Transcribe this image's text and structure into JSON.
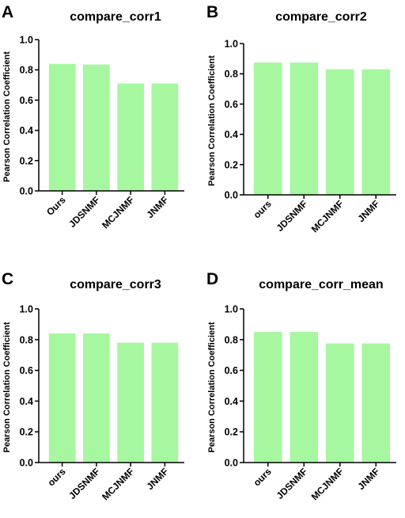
{
  "figure": {
    "bar_color": "#a6f7a0",
    "axis_color": "#000000"
  },
  "chart_data": [
    {
      "panel": "A",
      "type": "bar",
      "title": "compare_corr1",
      "ylabel": "Pearson Correlation Coefficient",
      "categories": [
        "Ours",
        "JDSNMF",
        "MCJNMF",
        "JNMF"
      ],
      "values": [
        0.84,
        0.835,
        0.71,
        0.71
      ],
      "ylim": [
        0,
        1.0
      ],
      "yticks": [
        "0.0",
        "0.2",
        "0.4",
        "0.6",
        "0.8",
        "1.0"
      ]
    },
    {
      "panel": "B",
      "type": "bar",
      "title": "compare_corr2",
      "ylabel": "Pearson Correlation Coefficient",
      "categories": [
        "ours",
        "JDSNMF",
        "MCJNMF",
        "JNMF"
      ],
      "values": [
        0.875,
        0.875,
        0.83,
        0.83
      ],
      "ylim": [
        0,
        1.0
      ],
      "yticks": [
        "0.0",
        "0.2",
        "0.4",
        "0.6",
        "0.8",
        "1.0"
      ]
    },
    {
      "panel": "C",
      "type": "bar",
      "title": "compare_corr3",
      "ylabel": "Pearson Correlation Coefficient",
      "categories": [
        "ours",
        "JDSNMF",
        "MCJNMF",
        "JNMF"
      ],
      "values": [
        0.84,
        0.84,
        0.78,
        0.78
      ],
      "ylim": [
        0,
        1.0
      ],
      "yticks": [
        "0.0",
        "0.2",
        "0.4",
        "0.6",
        "0.8",
        "1.0"
      ]
    },
    {
      "panel": "D",
      "type": "bar",
      "title": "compare_corr_mean",
      "ylabel": "Pearson Correlation Coefficient",
      "categories": [
        "ours",
        "JDSNMF",
        "MCJNMF",
        "JNMF"
      ],
      "values": [
        0.85,
        0.85,
        0.775,
        0.775
      ],
      "ylim": [
        0,
        1.0
      ],
      "yticks": [
        "0.0",
        "0.2",
        "0.4",
        "0.6",
        "0.8",
        "1.0"
      ]
    }
  ]
}
